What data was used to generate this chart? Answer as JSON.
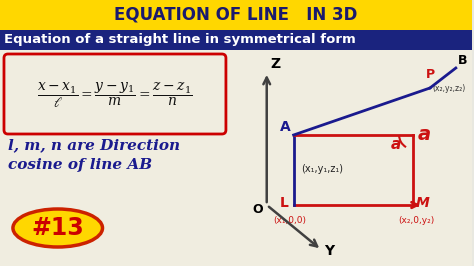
{
  "title1": "EQUATION OF LINE   IN 3D",
  "title2": "Equation of a straight line in symmetrical form",
  "title1_bg": "#FFD700",
  "title2_bg": "#1a237e",
  "title1_color": "#1a1a6e",
  "title2_color": "#FFFFFF",
  "bg_color": "#e8e8e0",
  "formula_box_color": "#CC0000",
  "diagram_axis_color": "#404040",
  "blue_line_color": "#1a1a8e",
  "red_color": "#CC1111",
  "dark_blue_text": "#1a1a8e",
  "number_bg": "#FFD700",
  "number_border": "#CC2200",
  "number_color": "#CC0000",
  "number_text": "#13",
  "note_line1": "l, m, n are Direction",
  "note_line2": "cosine of line AB",
  "label_O": "O",
  "label_Z": "Z",
  "label_Y": "Y",
  "label_A": "A",
  "label_L": "L",
  "label_M": "M",
  "label_P": "P",
  "label_B": "B",
  "label_alpha": "a",
  "label_a_right": "a",
  "coord1": "(x₁,0,0)",
  "coord2": "(x₂,0,y₂)",
  "coord_inner": "(x₁,y₁,z₁)",
  "coord_P": "(x₂,y₂,z₂)"
}
